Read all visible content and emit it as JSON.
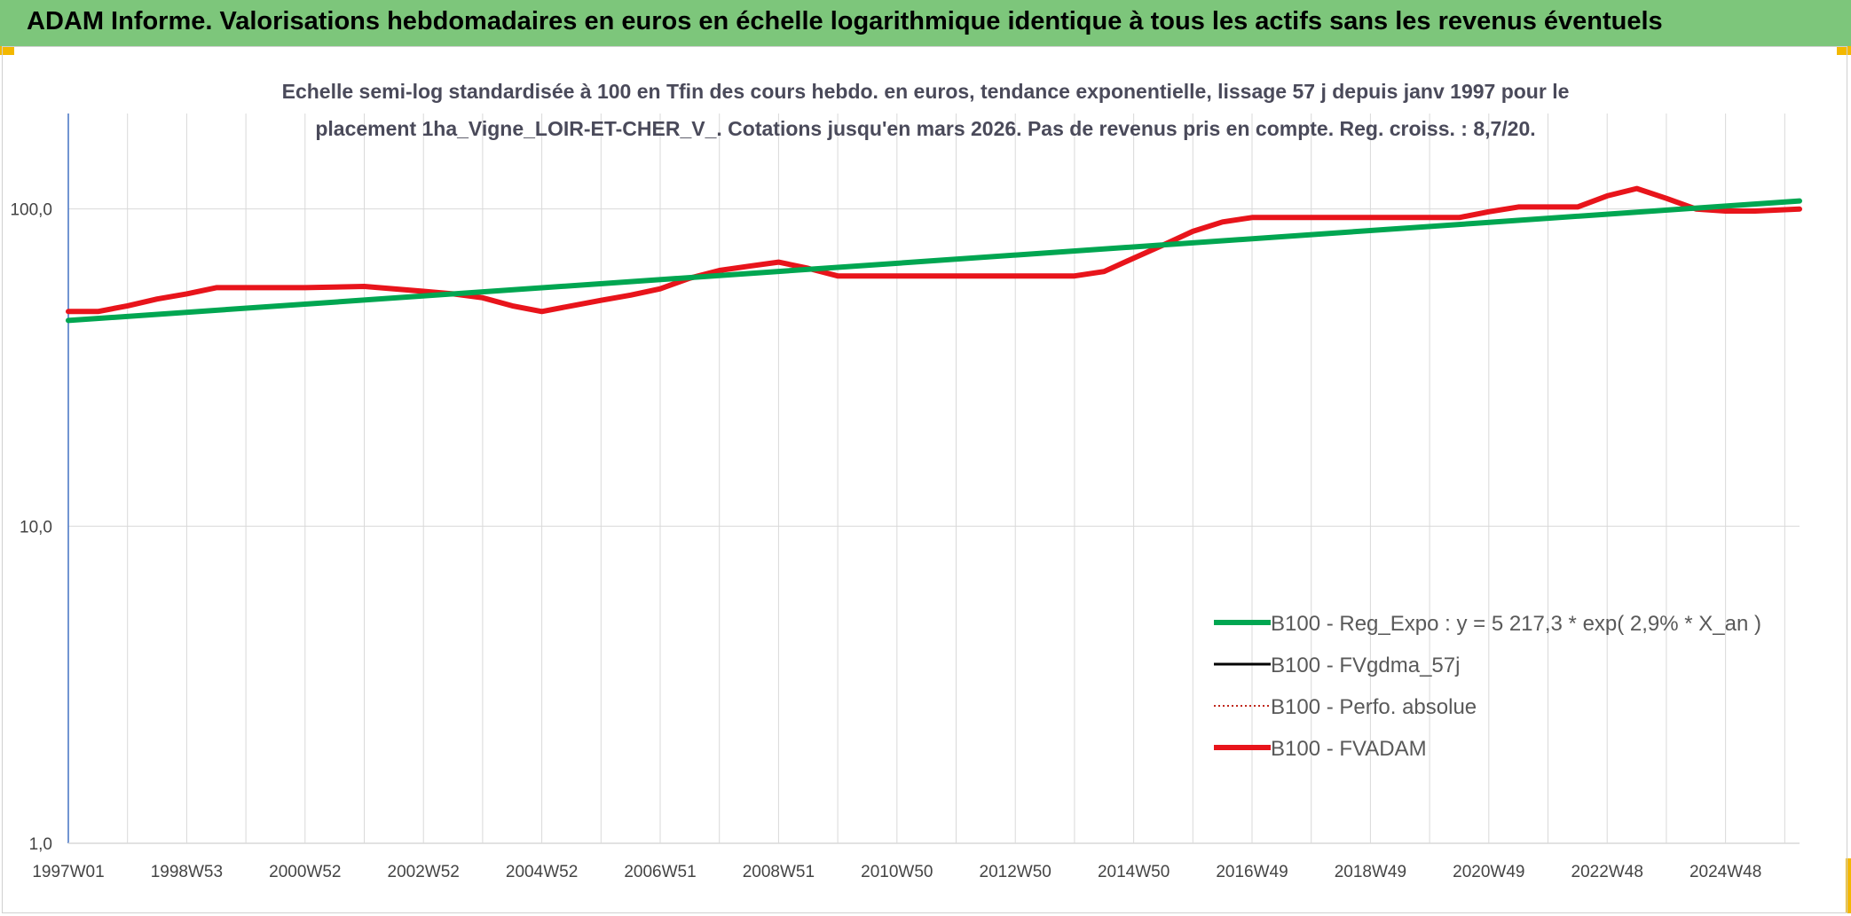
{
  "header": {
    "title": "ADAM Informe. Valorisations hebdomadaires en euros en échelle logarithmique identique à tous les actifs sans les revenus éventuels"
  },
  "colors": {
    "header_bg": "#7dc67b",
    "corner_accent": "#f3b800",
    "trend": "#00a651",
    "fvadam": "#e8141b",
    "fvgdma": "#000000",
    "perfo": "#c0281c",
    "grid": "#d9d9d9",
    "axis": "#4472c4"
  },
  "chart_data": {
    "type": "line",
    "title_lines": [
      "Echelle semi-log standardisée à 100 en Tfin des cours hebdo. en euros, tendance exponentielle, lissage 57 j depuis janv 1997 pour le",
      "placement 1ha_Vigne_LOIR-ET-CHER_V_. Cotations jusqu'en mars 2026. Pas de revenus pris en compte. Reg. croiss. : 8,7/20."
    ],
    "y_scale": "log",
    "ylim": [
      1,
      200
    ],
    "y_ticks": [
      {
        "value": 1,
        "label": "1,0"
      },
      {
        "value": 10,
        "label": "10,0"
      },
      {
        "value": 100,
        "label": "100,0"
      }
    ],
    "x_range": [
      1997.0,
      2026.25
    ],
    "x_ticks": [
      {
        "x": 1997.0,
        "label": "1997W01"
      },
      {
        "x": 1999.0,
        "label": "1998W53"
      },
      {
        "x": 2001.0,
        "label": "2000W52"
      },
      {
        "x": 2003.0,
        "label": "2002W52"
      },
      {
        "x": 2005.0,
        "label": "2004W52"
      },
      {
        "x": 2007.0,
        "label": "2006W51"
      },
      {
        "x": 2009.0,
        "label": "2008W51"
      },
      {
        "x": 2011.0,
        "label": "2010W50"
      },
      {
        "x": 2013.0,
        "label": "2012W50"
      },
      {
        "x": 2015.0,
        "label": "2014W50"
      },
      {
        "x": 2017.0,
        "label": "2016W49"
      },
      {
        "x": 2019.0,
        "label": "2018W49"
      },
      {
        "x": 2021.0,
        "label": "2020W49"
      },
      {
        "x": 2023.0,
        "label": "2022W48"
      },
      {
        "x": 2025.0,
        "label": "2024W48"
      }
    ],
    "grid": true,
    "legend_position": "bottom-right",
    "series": [
      {
        "name": "B100 - Reg_Expo : y = 5 217,3 * exp( 2,9% *  X_an )",
        "style": "solid-thick",
        "color": "#00a651",
        "x": [
          1997.0,
          2026.25
        ],
        "y": [
          44.5,
          106.0
        ]
      },
      {
        "name": "B100 - FVgdma_57j",
        "style": "solid-thin",
        "color": "#000000",
        "x": [],
        "y": []
      },
      {
        "name": "B100 - Perfo. absolue",
        "style": "dotted",
        "color": "#c0281c",
        "x": [],
        "y": []
      },
      {
        "name": "B100 - FVADAM",
        "style": "solid-thick",
        "color": "#e8141b",
        "x": [
          1997.0,
          1997.5,
          1998.0,
          1998.5,
          1999.0,
          1999.5,
          2000.0,
          2001.0,
          2002.0,
          2002.5,
          2003.0,
          2003.5,
          2004.0,
          2004.5,
          2005.0,
          2005.5,
          2006.0,
          2006.5,
          2007.0,
          2007.5,
          2008.0,
          2008.5,
          2009.0,
          2009.5,
          2010.0,
          2011.0,
          2012.0,
          2013.0,
          2014.0,
          2014.5,
          2015.0,
          2015.5,
          2016.0,
          2016.5,
          2017.0,
          2017.5,
          2018.0,
          2019.0,
          2020.0,
          2020.5,
          2021.0,
          2021.5,
          2022.0,
          2022.5,
          2023.0,
          2023.5,
          2024.0,
          2024.5,
          2025.0,
          2025.5,
          2026.25
        ],
        "y": [
          47.5,
          47.5,
          49.5,
          52.0,
          54.0,
          56.5,
          56.5,
          56.5,
          57.0,
          56.0,
          55.0,
          54.0,
          52.5,
          49.5,
          47.5,
          49.5,
          51.5,
          53.5,
          56.0,
          60.5,
          64.0,
          66.0,
          68.0,
          65.0,
          61.5,
          61.5,
          61.5,
          61.5,
          61.5,
          63.5,
          70.0,
          77.0,
          85.0,
          91.0,
          94.0,
          94.0,
          94.0,
          94.0,
          94.0,
          94.0,
          98.0,
          101.5,
          101.5,
          101.5,
          110.0,
          116.0,
          108.0,
          100.0,
          98.5,
          98.5,
          100.0
        ]
      }
    ]
  }
}
